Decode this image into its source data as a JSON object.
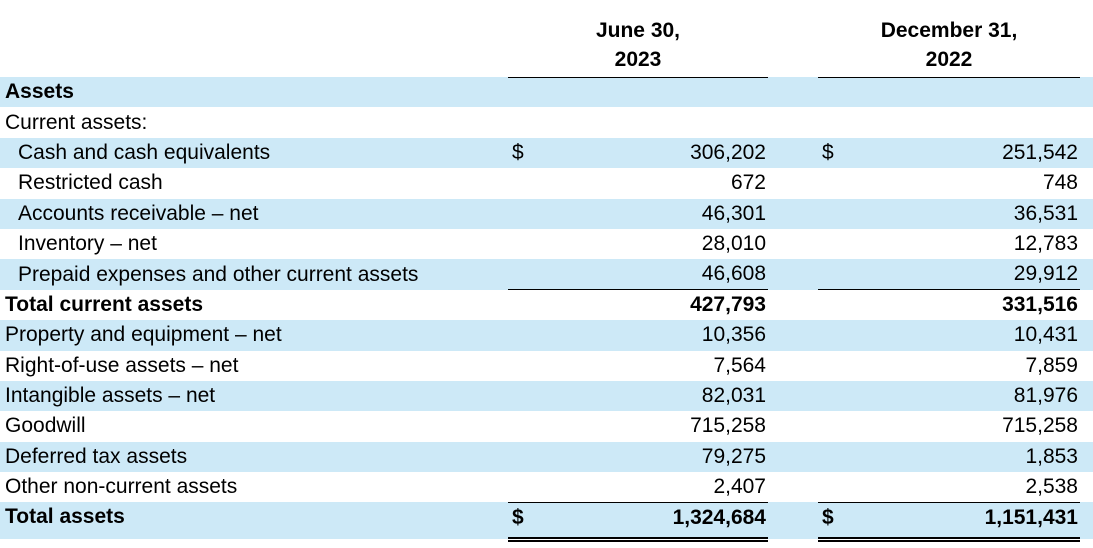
{
  "colors": {
    "stripe": "#cde9f7",
    "text": "#000000",
    "rule": "#000000",
    "background": "#ffffff"
  },
  "currency_symbol": "$",
  "table": {
    "columns": [
      {
        "line1": "June 30,",
        "line2": "2023"
      },
      {
        "line1": "December 31,",
        "line2": "2022"
      }
    ],
    "rows": [
      {
        "label": "Assets",
        "indent": 0,
        "bold": true,
        "shaded": true,
        "dollar": false,
        "values": [
          "",
          ""
        ]
      },
      {
        "label": "Current assets:",
        "indent": 0,
        "bold": false,
        "shaded": false,
        "dollar": false,
        "values": [
          "",
          ""
        ]
      },
      {
        "label": "Cash and cash equivalents",
        "indent": 1,
        "bold": false,
        "shaded": true,
        "dollar": true,
        "values": [
          "306,202",
          "251,542"
        ]
      },
      {
        "label": "Restricted cash",
        "indent": 1,
        "bold": false,
        "shaded": false,
        "dollar": false,
        "values": [
          "672",
          "748"
        ]
      },
      {
        "label": "Accounts receivable – net",
        "indent": 1,
        "bold": false,
        "shaded": true,
        "dollar": false,
        "values": [
          "46,301",
          "36,531"
        ]
      },
      {
        "label": "Inventory – net",
        "indent": 1,
        "bold": false,
        "shaded": false,
        "dollar": false,
        "values": [
          "28,010",
          "12,783"
        ]
      },
      {
        "label": "Prepaid expenses and other current assets",
        "indent": 1,
        "bold": false,
        "shaded": true,
        "dollar": false,
        "values": [
          "46,608",
          "29,912"
        ],
        "rule_below": true
      },
      {
        "label": "Total current assets",
        "indent": 0,
        "bold": true,
        "shaded": false,
        "dollar": false,
        "values": [
          "427,793",
          "331,516"
        ]
      },
      {
        "label": "Property and equipment – net",
        "indent": 0,
        "bold": false,
        "shaded": true,
        "dollar": false,
        "values": [
          "10,356",
          "10,431"
        ]
      },
      {
        "label": "Right-of-use assets – net",
        "indent": 0,
        "bold": false,
        "shaded": false,
        "dollar": false,
        "values": [
          "7,564",
          "7,859"
        ]
      },
      {
        "label": "Intangible assets – net",
        "indent": 0,
        "bold": false,
        "shaded": true,
        "dollar": false,
        "values": [
          "82,031",
          "81,976"
        ]
      },
      {
        "label": "Goodwill",
        "indent": 0,
        "bold": false,
        "shaded": false,
        "dollar": false,
        "values": [
          "715,258",
          "715,258"
        ]
      },
      {
        "label": "Deferred tax assets",
        "indent": 0,
        "bold": false,
        "shaded": true,
        "dollar": false,
        "values": [
          "79,275",
          "1,853"
        ]
      },
      {
        "label": "Other non-current assets",
        "indent": 0,
        "bold": false,
        "shaded": false,
        "dollar": false,
        "values": [
          "2,407",
          "2,538"
        ],
        "rule_below": true
      },
      {
        "label": "Total assets",
        "indent": 0,
        "bold": true,
        "shaded": true,
        "dollar": true,
        "values": [
          "1,324,684",
          "1,151,431"
        ],
        "double_rule": true,
        "total": true
      }
    ]
  }
}
